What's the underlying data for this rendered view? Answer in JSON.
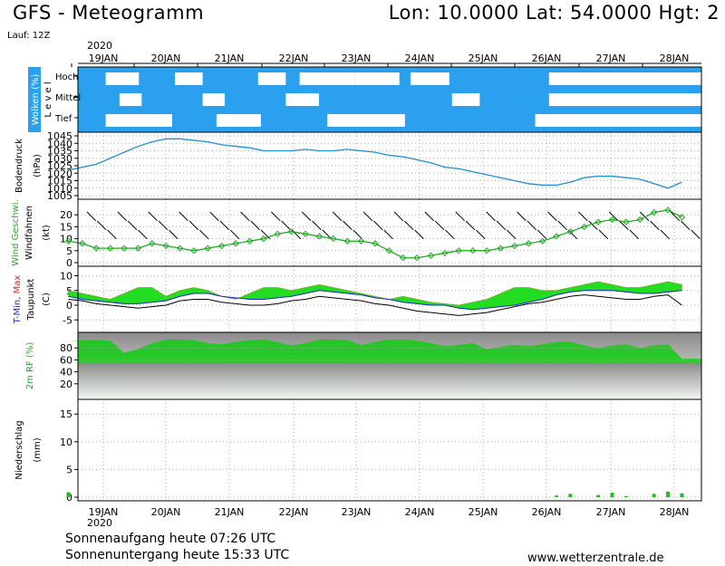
{
  "header": {
    "title": "GFS - Meteogramm",
    "coords": "Lon: 10.0000 Lat: 54.0000 Hgt: 2",
    "run": "Lauf: 12Z",
    "year_top": "2020",
    "year_bottom": "2020"
  },
  "footer": {
    "sunrise": "Sonnenaufgang heute 07:26 UTC",
    "sunset": "Sonnenuntergang heute 15:33 UTC",
    "website": "www.wetterzentrale.de"
  },
  "colors": {
    "cloud_blue": "#2aa0ee",
    "pressure_line": "#1e90d8",
    "wind_green": "#22aa22",
    "rh_green": "#11cc11",
    "tmin_blue": "#2222dd",
    "tmax_red": "#dd2222",
    "precip_green": "#22bb22"
  },
  "chart_data": {
    "type": "line",
    "x_labels": [
      "19JAN",
      "20JAN",
      "21JAN",
      "22JAN",
      "23JAN",
      "24JAN",
      "25JAN",
      "26JAN",
      "27JAN",
      "28JAN"
    ],
    "panels": {
      "clouds": {
        "label": "Wolken (%)",
        "side_label": "L e v e l",
        "levels": [
          "Hoch",
          "Mittel",
          "Tief"
        ]
      },
      "pressure": {
        "label": "Bodendruck",
        "unit": "(hPa)",
        "ticks": [
          1045,
          1040,
          1035,
          1030,
          1025,
          1020,
          1015,
          1010,
          1005
        ],
        "ylim": [
          1005,
          1045
        ],
        "series": [
          1022,
          1024,
          1026,
          1030,
          1034,
          1038,
          1041,
          1043,
          1043,
          1042,
          1041,
          1039,
          1038,
          1037,
          1035,
          1035,
          1035,
          1036,
          1035,
          1035,
          1036,
          1035,
          1034,
          1032,
          1031,
          1029,
          1027,
          1024,
          1023,
          1021,
          1019,
          1017,
          1015,
          1013,
          1012,
          1012,
          1014,
          1017,
          1018,
          1018,
          1017,
          1016,
          1013,
          1010,
          1014
        ]
      },
      "wind": {
        "label": "Wind Geschwi.",
        "sub_label": "Windfahnen",
        "unit": "(kt)",
        "ticks": [
          0,
          5,
          10,
          15,
          20
        ],
        "ylim": [
          0,
          25
        ],
        "series": [
          9,
          8,
          6,
          6,
          6,
          6,
          8,
          7,
          6,
          5,
          6,
          7,
          8,
          9,
          10,
          12,
          13,
          12,
          11,
          10,
          9,
          9,
          8,
          5,
          2,
          2,
          3,
          4,
          5,
          5,
          5,
          6,
          7,
          8,
          9,
          11,
          13,
          15,
          17,
          18,
          17,
          18,
          21,
          22,
          19
        ]
      },
      "temperature": {
        "label_tmin": "T-Min,",
        "label_tmax": "Max",
        "sub_label": "Taupunkt",
        "unit": "(C)",
        "ticks": [
          -5,
          0,
          5,
          10
        ],
        "ylim": [
          -8,
          12
        ],
        "tmin": [
          3,
          2,
          1.5,
          1,
          0.5,
          0.5,
          1,
          1.5,
          3,
          4,
          4,
          3,
          2.5,
          2,
          2,
          2.5,
          3,
          4,
          5,
          4.5,
          4,
          3.5,
          2.5,
          2,
          1,
          0.5,
          0,
          0,
          -1,
          -1.5,
          -1,
          -0.5,
          0,
          1,
          2,
          3.5,
          4.5,
          5,
          5,
          5,
          4.5,
          4,
          4,
          4.5,
          5
        ],
        "tmax": [
          5,
          4,
          3,
          2,
          4,
          6,
          6,
          3,
          5,
          6,
          5,
          3,
          2,
          4,
          6,
          6,
          5,
          6,
          7,
          6,
          5,
          4,
          3,
          2,
          3,
          2,
          1,
          0.5,
          0,
          1,
          2,
          4,
          6,
          6,
          5,
          5,
          6,
          7,
          8,
          7,
          6,
          6,
          7,
          8,
          7
        ],
        "dewpoint": [
          2,
          1.5,
          0.5,
          0,
          -0.5,
          -1,
          -0.5,
          0,
          1.5,
          2,
          2,
          1,
          0.5,
          0,
          0,
          0.5,
          1.5,
          2,
          3,
          2.5,
          2,
          1.5,
          0.5,
          0,
          -1,
          -2,
          -2.5,
          -3,
          -3.5,
          -3,
          -2.5,
          -1.5,
          -0.5,
          0.5,
          1,
          2,
          3,
          3.5,
          3,
          2.5,
          2,
          2,
          3,
          3.5,
          0
        ]
      },
      "humidity": {
        "label": "2m RF (%)",
        "ticks": [
          20,
          40,
          60,
          80
        ],
        "ylim": [
          0,
          100
        ],
        "series": [
          92,
          93,
          93,
          92,
          72,
          78,
          88,
          94,
          94,
          93,
          88,
          86,
          90,
          93,
          94,
          90,
          84,
          88,
          94,
          94,
          93,
          85,
          90,
          94,
          94,
          92,
          88,
          83,
          85,
          88,
          78,
          82,
          85,
          83,
          86,
          90,
          90,
          84,
          80,
          84,
          86,
          80,
          84,
          86,
          62
        ]
      },
      "precipitation": {
        "label": "Niederschlag",
        "unit": "(mm)",
        "ticks": [
          0,
          5,
          10,
          15
        ],
        "ylim": [
          0,
          17
        ],
        "series": [
          0.9,
          0,
          0,
          0,
          0,
          0,
          0,
          0,
          0,
          0,
          0,
          0,
          0,
          0,
          0,
          0,
          0,
          0,
          0,
          0,
          0,
          0,
          0,
          0,
          0,
          0,
          0,
          0,
          0,
          0,
          0,
          0,
          0,
          0,
          0,
          0.3,
          0.6,
          0,
          0.4,
          0.8,
          0.2,
          0,
          0.6,
          1.0,
          0.7
        ]
      }
    }
  }
}
